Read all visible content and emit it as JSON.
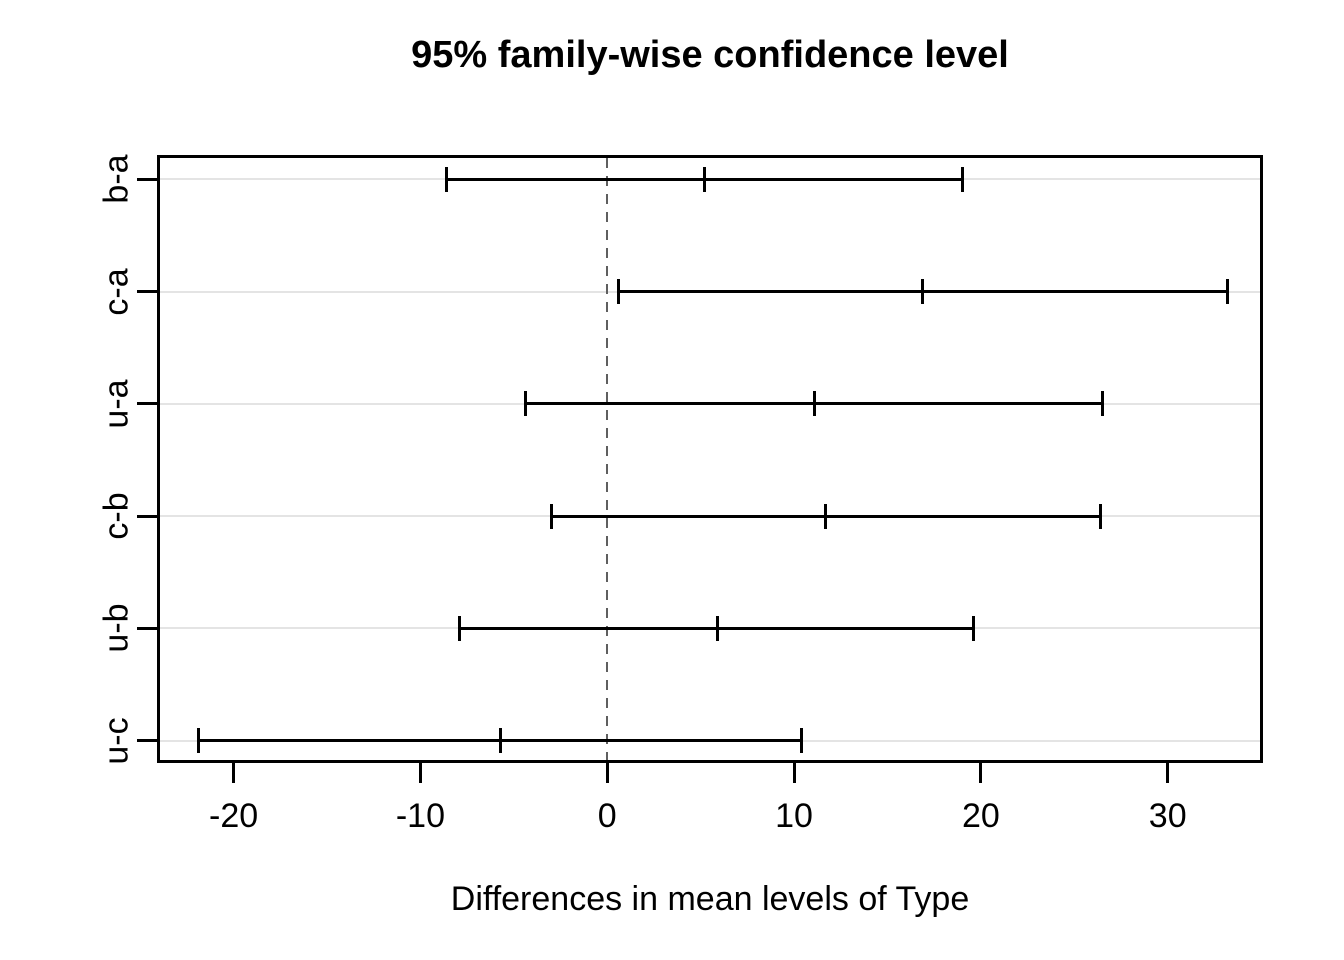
{
  "figure": {
    "kind": "R base-graphics TukeyHSD confidence-interval plot"
  },
  "chart_data": {
    "type": "errorbar",
    "orientation": "horizontal-intervals",
    "title": "95% family-wise confidence level",
    "xlabel": "Differences in mean levels of Type",
    "ylabel": "",
    "x_ticks": [
      -20,
      -10,
      0,
      10,
      20,
      30
    ],
    "x_tick_labels": [
      "-20",
      "-10",
      "0",
      "10",
      "20",
      "30"
    ],
    "xlim": [
      -24.1,
      35.1
    ],
    "grid": "light horizontal gridline across plot at each comparison row",
    "legend": "none",
    "reference_line": {
      "x": 0,
      "style": "dashed"
    },
    "comparisons": [
      {
        "label": "b-a",
        "diff": 5.2,
        "lower": -8.6,
        "upper": 19.0
      },
      {
        "label": "c-a",
        "diff": 16.9,
        "lower": 0.6,
        "upper": 33.2
      },
      {
        "label": "u-a",
        "diff": 11.1,
        "lower": -4.4,
        "upper": 26.5
      },
      {
        "label": "c-b",
        "diff": 11.7,
        "lower": -3.0,
        "upper": 26.4
      },
      {
        "label": "u-b",
        "diff": 5.9,
        "lower": -7.9,
        "upper": 19.6
      },
      {
        "label": "u-c",
        "diff": -5.7,
        "lower": -21.9,
        "upper": 10.4
      }
    ]
  },
  "colors": {
    "interval_line": "#000000",
    "box_border": "#000000",
    "reference_line": "#5f5f5f",
    "gridline": "#e4e4e4",
    "background": "#ffffff",
    "text": "#000000"
  }
}
